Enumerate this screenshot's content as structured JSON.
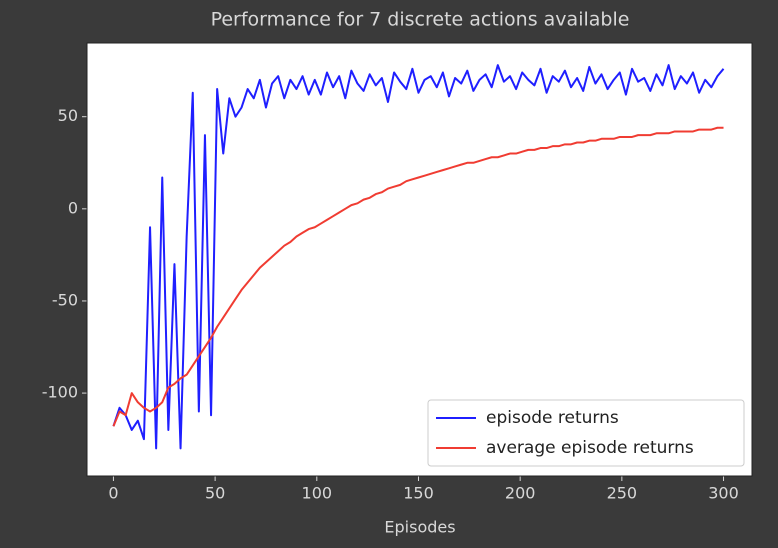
{
  "chart_data": {
    "type": "line",
    "title": "Performance for 7 discrete actions available",
    "xlabel": "Episodes",
    "x": [
      0,
      3,
      6,
      9,
      12,
      15,
      18,
      21,
      24,
      27,
      30,
      33,
      36,
      39,
      42,
      45,
      48,
      51,
      54,
      57,
      60,
      63,
      66,
      69,
      72,
      75,
      78,
      81,
      84,
      87,
      90,
      93,
      96,
      99,
      102,
      105,
      108,
      111,
      114,
      117,
      120,
      123,
      126,
      129,
      132,
      135,
      138,
      141,
      144,
      147,
      150,
      153,
      156,
      159,
      162,
      165,
      168,
      171,
      174,
      177,
      180,
      183,
      186,
      189,
      192,
      195,
      198,
      201,
      204,
      207,
      210,
      213,
      216,
      219,
      222,
      225,
      228,
      231,
      234,
      237,
      240,
      243,
      246,
      249,
      252,
      255,
      258,
      261,
      264,
      267,
      270,
      273,
      276,
      279,
      282,
      285,
      288,
      291,
      294,
      297,
      300
    ],
    "series": [
      {
        "name": "episode returns",
        "color": "#1f1fff",
        "values": [
          -118,
          -108,
          -112,
          -120,
          -115,
          -125,
          -10,
          -130,
          17,
          -120,
          -30,
          -130,
          -15,
          63,
          -110,
          40,
          -112,
          65,
          30,
          60,
          50,
          55,
          65,
          60,
          70,
          55,
          68,
          72,
          60,
          70,
          65,
          72,
          62,
          70,
          62,
          74,
          66,
          72,
          60,
          75,
          68,
          64,
          73,
          67,
          71,
          58,
          74,
          69,
          65,
          76,
          63,
          70,
          72,
          66,
          74,
          61,
          71,
          68,
          75,
          64,
          70,
          73,
          66,
          78,
          69,
          72,
          65,
          74,
          70,
          67,
          76,
          63,
          72,
          69,
          75,
          66,
          71,
          64,
          77,
          68,
          73,
          65,
          70,
          74,
          62,
          76,
          69,
          71,
          64,
          73,
          67,
          78,
          65,
          72,
          68,
          74,
          63,
          70,
          66,
          72,
          76
        ]
      },
      {
        "name": "average episode returns",
        "color": "#f03c32",
        "values": [
          -118,
          -110,
          -112,
          -100,
          -105,
          -108,
          -110,
          -108,
          -105,
          -97,
          -95,
          -92,
          -90,
          -85,
          -80,
          -75,
          -70,
          -64,
          -59,
          -54,
          -49,
          -44,
          -40,
          -36,
          -32,
          -29,
          -26,
          -23,
          -20,
          -18,
          -15,
          -13,
          -11,
          -10,
          -8,
          -6,
          -4,
          -2,
          0,
          2,
          3,
          5,
          6,
          8,
          9,
          11,
          12,
          13,
          15,
          16,
          17,
          18,
          19,
          20,
          21,
          22,
          23,
          24,
          25,
          25,
          26,
          27,
          28,
          28,
          29,
          30,
          30,
          31,
          32,
          32,
          33,
          33,
          34,
          34,
          35,
          35,
          36,
          36,
          37,
          37,
          38,
          38,
          38,
          39,
          39,
          39,
          40,
          40,
          40,
          41,
          41,
          41,
          42,
          42,
          42,
          42,
          43,
          43,
          43,
          44,
          44
        ]
      }
    ],
    "xlim": [
      -13,
      314
    ],
    "ylim": [
      -145,
      90
    ],
    "xticks": [
      0,
      50,
      100,
      150,
      200,
      250,
      300
    ],
    "yticks": [
      -100,
      -50,
      0,
      50
    ],
    "grid": false,
    "legend": "lower right"
  }
}
